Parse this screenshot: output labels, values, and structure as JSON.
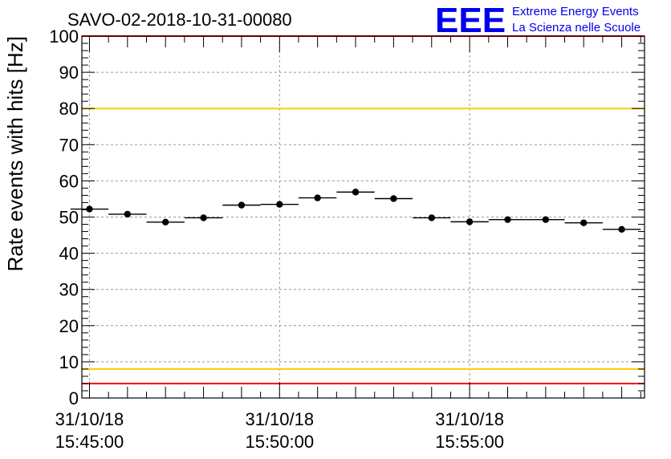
{
  "title": "SAVO-02-2018-10-31-00080",
  "logo": {
    "mark": "EEE",
    "line1": "Extreme Energy Events",
    "line2": "La Scienza nelle Scuole",
    "color": "#0000ee"
  },
  "chart_data": {
    "type": "scatter",
    "title": "SAVO-02-2018-10-31-00080",
    "ylabel": "Rate events with hits [Hz]",
    "xlabel": "",
    "ylim": [
      0,
      100
    ],
    "y_ticks": [
      0,
      10,
      20,
      30,
      40,
      50,
      60,
      70,
      80,
      90,
      100
    ],
    "x_unit": "minutes after 31/10/18 15:45:00",
    "xlim": [
      -0.2,
      14.6
    ],
    "x_ticks": [
      {
        "x": 0,
        "date": "31/10/18",
        "time": "15:45:00"
      },
      {
        "x": 5,
        "date": "31/10/18",
        "time": "15:50:00"
      },
      {
        "x": 10,
        "date": "31/10/18",
        "time": "15:55:00"
      }
    ],
    "grid": true,
    "thresholds": [
      {
        "value": 100,
        "color": "#ff0000"
      },
      {
        "value": 80,
        "color": "#ffcc00"
      },
      {
        "value": 8,
        "color": "#ffcc00"
      },
      {
        "value": 4,
        "color": "#ff0000"
      }
    ],
    "series": [
      {
        "marker_color": "#000000",
        "bin_width_minutes": 1,
        "points": [
          {
            "x": 0.0,
            "y": 52.2
          },
          {
            "x": 1.0,
            "y": 50.8
          },
          {
            "x": 2.0,
            "y": 48.6
          },
          {
            "x": 3.0,
            "y": 49.8
          },
          {
            "x": 4.0,
            "y": 53.3
          },
          {
            "x": 5.0,
            "y": 53.5
          },
          {
            "x": 6.0,
            "y": 55.3
          },
          {
            "x": 7.0,
            "y": 56.9
          },
          {
            "x": 8.0,
            "y": 55.1
          },
          {
            "x": 9.0,
            "y": 49.8
          },
          {
            "x": 10.0,
            "y": 48.7
          },
          {
            "x": 11.0,
            "y": 49.3
          },
          {
            "x": 12.0,
            "y": 49.3
          },
          {
            "x": 13.0,
            "y": 48.4
          },
          {
            "x": 14.0,
            "y": 46.6
          }
        ]
      }
    ]
  }
}
